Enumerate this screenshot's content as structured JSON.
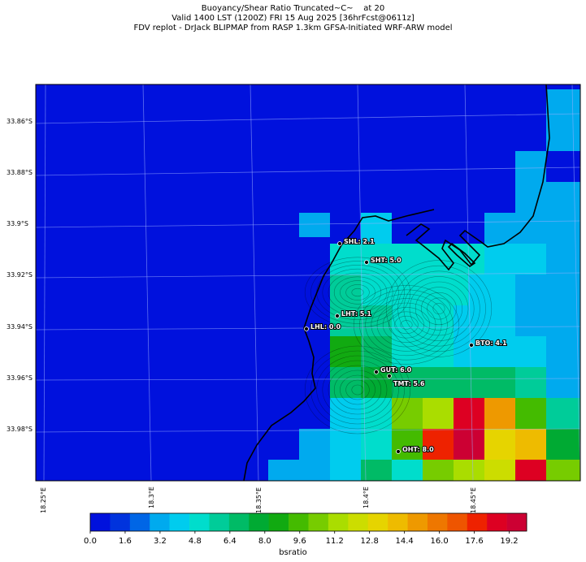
{
  "title": {
    "line1": "Buoyancy/Shear Ratio Truncated~C~    at 20",
    "line2": "Valid 1400 LST (1200Z) FRI 15 Aug 2025 [36hrFcst@0611z]",
    "line3": "FDV replot - DrJack BLIPMAP from RASP 1.3km GFSA-Initiated WRF-ARW model"
  },
  "latitude_labels": [
    "33.86°S",
    "33.88°S",
    "33.9°S",
    "33.92°S",
    "33.94°S",
    "33.96°S",
    "33.98°S"
  ],
  "longitude_labels": [
    "18.25°E",
    "18.3°E",
    "18.35°E",
    "18.4°E",
    "18.45°E"
  ],
  "stations": [
    {
      "id": "SHL",
      "label": "SHL: 2.1"
    },
    {
      "id": "SHT",
      "label": "SHT: 5.0"
    },
    {
      "id": "LHT",
      "label": "LHT: 5.1"
    },
    {
      "id": "LHL",
      "label": "LHL: 0.0"
    },
    {
      "id": "BTO",
      "label": "BTO: 4.1"
    },
    {
      "id": "GUT",
      "label": "GUT: 6.0"
    },
    {
      "id": "TMT",
      "label": "TMT: 5.6"
    },
    {
      "id": "OHT",
      "label": "OHT: 8.0"
    }
  ],
  "colorbar": {
    "label": "bsratio",
    "ticks": [
      "0.0",
      "1.6",
      "3.2",
      "4.8",
      "6.4",
      "8.0",
      "9.6",
      "11.2",
      "12.8",
      "14.4",
      "16.0",
      "17.6",
      "19.2"
    ],
    "colors": [
      "#0011dd",
      "#0033dd",
      "#0066e6",
      "#00aaee",
      "#00ccee",
      "#00ddcc",
      "#00cc99",
      "#00bb66",
      "#00aa33",
      "#11aa11",
      "#44bb00",
      "#77cc00",
      "#aadd00",
      "#ccdd00",
      "#e6d400",
      "#eebb00",
      "#ee9900",
      "#ee7700",
      "#ee5500",
      "#ee2200",
      "#dd0022",
      "#cc0033"
    ]
  },
  "map_colors": {
    "ocean": "#0011dd",
    "coastline": "#000000",
    "graticule": "#9fb0ff"
  }
}
